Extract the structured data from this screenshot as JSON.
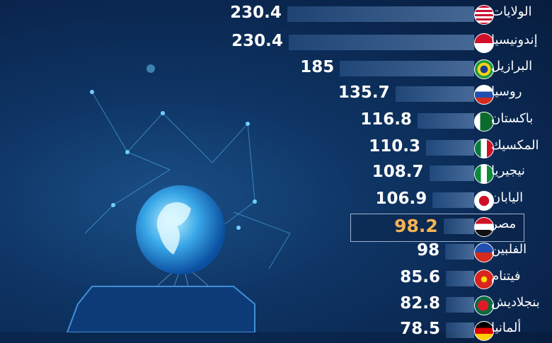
{
  "chart_data": {
    "type": "bar",
    "orientation": "horizontal",
    "categories": [
      "الولايات",
      "إندونيسيا",
      "البرازيل",
      "روسيا",
      "باكستان",
      "المكسيك",
      "نيجيريا",
      "اليابان",
      "مصر",
      "الفلبين",
      "فيتنام",
      "بنجلاديش",
      "ألمانيا"
    ],
    "values": [
      230.4,
      230.4,
      185,
      135.7,
      116.8,
      110.3,
      108.7,
      106.9,
      98.2,
      98,
      85.6,
      82.8,
      78.5
    ],
    "flags": [
      "us-flag-icon",
      "indonesia-flag-icon",
      "brazil-flag-icon",
      "russia-flag-icon",
      "pakistan-flag-icon",
      "mexico-flag-icon",
      "nigeria-flag-icon",
      "japan-flag-icon",
      "egypt-flag-icon",
      "philippines-flag-icon",
      "vietnam-flag-icon",
      "bangladesh-flag-icon",
      "germany-flag-icon"
    ],
    "highlight": "مصر",
    "highlight_color": "#f6b351",
    "bar_color": "#5b87bd"
  }
}
